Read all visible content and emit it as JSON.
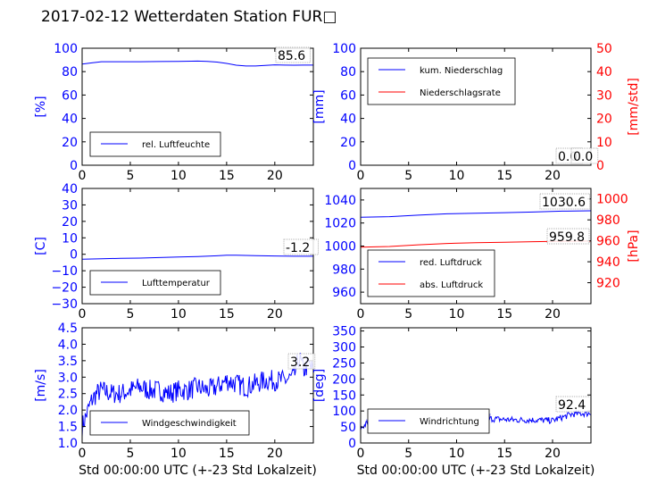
{
  "page": {
    "title": "2017-02-12 Wetterdaten Station FUR□"
  },
  "colors": {
    "left_axis": "#0000ff",
    "right_axis": "#ff0000",
    "series_blue": "#0000ff",
    "series_red": "#ff0000",
    "wind_dir_light": "#8888ee"
  },
  "chart_data": [
    {
      "id": "humidity",
      "type": "line",
      "xlim": [
        0,
        24
      ],
      "ylim": [
        0,
        100
      ],
      "xticks": [
        "0",
        "5",
        "10",
        "15",
        "20"
      ],
      "yticks": [
        "0",
        "20",
        "40",
        "60",
        "80",
        "100"
      ],
      "ylabel": "[%]",
      "xlabel": "",
      "last_value_label": "85.6",
      "legend": [
        "rel. Luftfeuchte"
      ],
      "series": [
        {
          "name": "rel. Luftfeuchte",
          "color": "#0000ff",
          "x": [
            0,
            1,
            2,
            4,
            6,
            8,
            10,
            12,
            13,
            14,
            15,
            16,
            17,
            18,
            19,
            20,
            21,
            22,
            23,
            24
          ],
          "y": [
            86.5,
            87.5,
            88.5,
            88.5,
            88.5,
            88.6,
            88.8,
            89,
            88.8,
            88.2,
            87,
            85.5,
            84.8,
            84.8,
            85.3,
            85.8,
            85.6,
            85.5,
            85.6,
            85.6
          ]
        }
      ]
    },
    {
      "id": "precip",
      "type": "line",
      "xlim": [
        0,
        24
      ],
      "ylim": [
        0,
        100
      ],
      "ylim_right": [
        0,
        50
      ],
      "xticks": [
        "0",
        "5",
        "10",
        "15",
        "20"
      ],
      "yticks": [
        "0",
        "20",
        "40",
        "60",
        "80",
        "100"
      ],
      "yticks_right": [
        "0",
        "10",
        "20",
        "30",
        "40",
        "50"
      ],
      "ylabel": "[mm]",
      "ylabel_right": "[mm/std]",
      "xlabel": "",
      "last_value_labels": [
        "0.0",
        "0.0"
      ],
      "legend": [
        "kum. Niederschlag",
        "Niederschlagsrate"
      ],
      "series": [
        {
          "name": "kum. Niederschlag",
          "color": "#0000ff",
          "axis": "left",
          "x": [
            0,
            24
          ],
          "y": [
            0,
            0
          ]
        },
        {
          "name": "Niederschlagsrate",
          "color": "#ff0000",
          "axis": "right",
          "x": [
            0,
            24
          ],
          "y": [
            0,
            0
          ]
        }
      ]
    },
    {
      "id": "temperature",
      "type": "line",
      "xlim": [
        0,
        24
      ],
      "ylim": [
        -30,
        40
      ],
      "xticks": [
        "0",
        "5",
        "10",
        "15",
        "20"
      ],
      "yticks": [
        "−30",
        "−20",
        "−10",
        "0",
        "10",
        "20",
        "30",
        "40"
      ],
      "ylabel": "[C]",
      "xlabel": "",
      "last_value_label": "-1.2",
      "legend": [
        "Lufttemperatur"
      ],
      "series": [
        {
          "name": "Lufttemperatur",
          "color": "#0000ff",
          "x": [
            0,
            2,
            4,
            6,
            8,
            10,
            12,
            14,
            15,
            16,
            18,
            20,
            22,
            24
          ],
          "y": [
            -3.0,
            -2.7,
            -2.5,
            -2.3,
            -2.0,
            -1.7,
            -1.4,
            -0.9,
            -0.6,
            -0.6,
            -0.8,
            -1.0,
            -1.2,
            -1.2
          ]
        }
      ]
    },
    {
      "id": "pressure",
      "type": "line",
      "xlim": [
        0,
        24
      ],
      "ylim": [
        950,
        1050
      ],
      "ylim_right": [
        900,
        1010
      ],
      "xticks": [
        "0",
        "5",
        "10",
        "15",
        "20"
      ],
      "yticks": [
        "960",
        "980",
        "1000",
        "1020",
        "1040"
      ],
      "yticks_right": [
        "920",
        "940",
        "960",
        "980",
        "1000"
      ],
      "ylabel": "",
      "ylabel_right": "[hPa]",
      "xlabel": "",
      "last_value_labels": [
        "1030.6",
        "959.8"
      ],
      "legend": [
        "red. Luftdruck",
        "abs. Luftdruck"
      ],
      "series": [
        {
          "name": "red. Luftdruck",
          "color": "#0000ff",
          "axis": "left",
          "x": [
            0,
            3,
            6,
            9,
            12,
            15,
            18,
            21,
            24
          ],
          "y": [
            1025,
            1025.5,
            1026.8,
            1028,
            1028.5,
            1029,
            1029.5,
            1030.3,
            1030.6
          ]
        },
        {
          "name": "abs. Luftdruck",
          "color": "#ff0000",
          "axis": "right",
          "x": [
            0,
            3,
            6,
            9,
            12,
            15,
            18,
            21,
            24
          ],
          "y": [
            954,
            954.6,
            956.2,
            957.5,
            958.2,
            958.7,
            959.2,
            959.6,
            959.8
          ]
        }
      ]
    },
    {
      "id": "wind_speed",
      "type": "line",
      "xlim": [
        0,
        24
      ],
      "ylim": [
        1.0,
        4.5
      ],
      "xticks": [
        "0",
        "5",
        "10",
        "15",
        "20"
      ],
      "yticks": [
        "1.0",
        "1.5",
        "2.0",
        "2.5",
        "3.0",
        "3.5",
        "4.0",
        "4.5"
      ],
      "ylabel": "[m/s]",
      "xlabel": "Std 00:00:00 UTC (+-23 Std Lokalzeit)",
      "last_value_label": "3.2",
      "legend": [
        "Windgeschwindigkeit"
      ],
      "series": [
        {
          "name": "Windgeschwindigkeit",
          "color": "#0000ff",
          "x": [
            0,
            0.5,
            1,
            1.5,
            2,
            3,
            4,
            5,
            6,
            7,
            8,
            9,
            10,
            11,
            12,
            13,
            14,
            15,
            16,
            17,
            18,
            19,
            20,
            21,
            22,
            22.5,
            23,
            23.5,
            24
          ],
          "y": [
            1.5,
            1.9,
            2.3,
            2.5,
            2.6,
            2.5,
            2.5,
            2.6,
            2.7,
            2.6,
            2.6,
            2.5,
            2.6,
            2.6,
            2.7,
            2.6,
            2.7,
            2.9,
            2.8,
            2.7,
            2.8,
            2.9,
            2.9,
            2.9,
            3.0,
            3.6,
            3.2,
            3.4,
            3.2
          ],
          "noise": 0.32
        }
      ]
    },
    {
      "id": "wind_dir",
      "type": "line",
      "xlim": [
        0,
        24
      ],
      "ylim": [
        0,
        360
      ],
      "xticks": [
        "0",
        "5",
        "10",
        "15",
        "20"
      ],
      "yticks": [
        "0",
        "50",
        "100",
        "150",
        "200",
        "250",
        "300",
        "350"
      ],
      "ylabel": "[deg]",
      "xlabel": "Std 00:00:00 UTC (+-23 Std Lokalzeit)",
      "last_value_label": "92.4",
      "legend": [
        "Windrichtung"
      ],
      "series": [
        {
          "name": "Windrichtung",
          "color": "#0000ff",
          "x": [
            0,
            1,
            2,
            3,
            4,
            6,
            8,
            10,
            12,
            14,
            16,
            18,
            20,
            22,
            23,
            24
          ],
          "y": [
            45,
            70,
            80,
            82,
            78,
            80,
            82,
            80,
            78,
            75,
            72,
            72,
            70,
            90,
            92,
            92.4
          ],
          "noise": 10
        }
      ]
    }
  ]
}
